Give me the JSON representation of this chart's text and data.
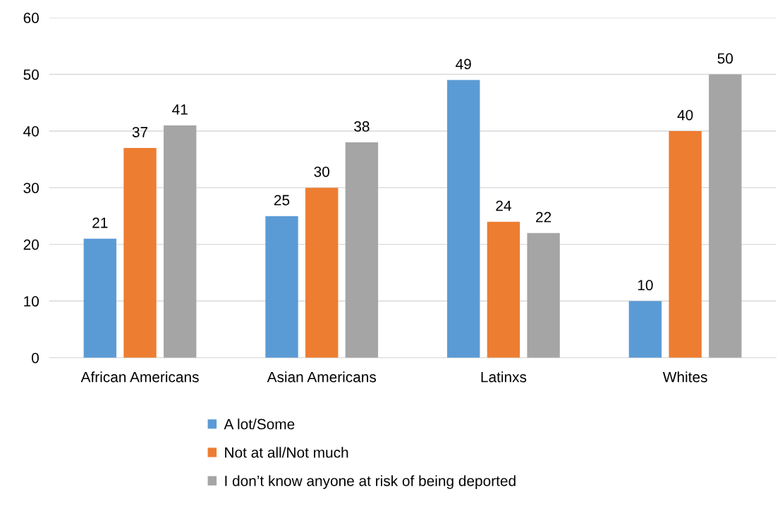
{
  "chart_data": {
    "type": "bar",
    "categories": [
      "African Americans",
      "Asian Americans",
      "Latinxs",
      "Whites"
    ],
    "series": [
      {
        "name": "A lot/Some",
        "color": "#5b9bd5",
        "values": [
          21,
          25,
          49,
          10
        ]
      },
      {
        "name": "Not at all/Not much",
        "color": "#ed7d31",
        "values": [
          37,
          30,
          24,
          40
        ]
      },
      {
        "name": "I don’t know anyone at risk of being deported",
        "color": "#a5a5a5",
        "values": [
          41,
          38,
          22,
          50
        ]
      }
    ],
    "ylim": [
      0,
      60
    ],
    "yticks": [
      0,
      10,
      20,
      30,
      40,
      50,
      60
    ],
    "grid": "y",
    "legend": "bottom",
    "data_labels": true
  }
}
